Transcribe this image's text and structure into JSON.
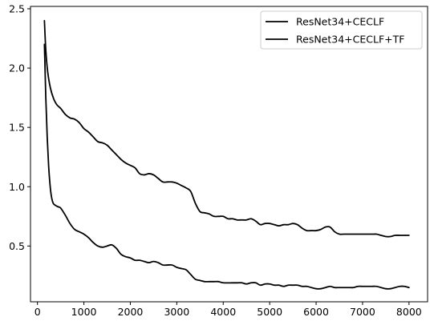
{
  "chart_data": {
    "type": "line",
    "title": "",
    "xlabel": "",
    "ylabel": "",
    "xlim": [
      -150,
      8400
    ],
    "ylim": [
      0.03,
      2.52
    ],
    "xticks": [
      0,
      1000,
      2000,
      3000,
      4000,
      5000,
      6000,
      7000,
      8000
    ],
    "yticks": [
      0.5,
      1.0,
      1.5,
      2.0,
      2.5
    ],
    "xtick_labels": [
      "0",
      "1000",
      "2000",
      "3000",
      "4000",
      "5000",
      "6000",
      "7000",
      "8000"
    ],
    "ytick_labels": [
      "0.5",
      "1.0",
      "1.5",
      "2.0",
      "2.5"
    ],
    "grid": false,
    "legend_position": "top-right",
    "series": [
      {
        "name": "ResNet34+CECLF",
        "color": "#000000",
        "points": [
          [
            150,
            2.4
          ],
          [
            180,
            2.15
          ],
          [
            220,
            1.97
          ],
          [
            280,
            1.83
          ],
          [
            350,
            1.74
          ],
          [
            420,
            1.69
          ],
          [
            500,
            1.66
          ],
          [
            600,
            1.61
          ],
          [
            700,
            1.58
          ],
          [
            800,
            1.57
          ],
          [
            900,
            1.54
          ],
          [
            1000,
            1.49
          ],
          [
            1100,
            1.46
          ],
          [
            1200,
            1.42
          ],
          [
            1300,
            1.38
          ],
          [
            1400,
            1.37
          ],
          [
            1500,
            1.35
          ],
          [
            1600,
            1.31
          ],
          [
            1700,
            1.27
          ],
          [
            1800,
            1.23
          ],
          [
            1900,
            1.2
          ],
          [
            2000,
            1.18
          ],
          [
            2100,
            1.16
          ],
          [
            2200,
            1.11
          ],
          [
            2300,
            1.1
          ],
          [
            2400,
            1.11
          ],
          [
            2500,
            1.1
          ],
          [
            2600,
            1.07
          ],
          [
            2700,
            1.04
          ],
          [
            2800,
            1.04
          ],
          [
            2900,
            1.04
          ],
          [
            3000,
            1.03
          ],
          [
            3100,
            1.01
          ],
          [
            3200,
            0.99
          ],
          [
            3300,
            0.96
          ],
          [
            3400,
            0.86
          ],
          [
            3500,
            0.79
          ],
          [
            3600,
            0.78
          ],
          [
            3700,
            0.77
          ],
          [
            3800,
            0.75
          ],
          [
            3900,
            0.75
          ],
          [
            4000,
            0.75
          ],
          [
            4100,
            0.73
          ],
          [
            4200,
            0.73
          ],
          [
            4300,
            0.72
          ],
          [
            4400,
            0.72
          ],
          [
            4500,
            0.72
          ],
          [
            4600,
            0.73
          ],
          [
            4700,
            0.71
          ],
          [
            4800,
            0.68
          ],
          [
            4900,
            0.69
          ],
          [
            5000,
            0.69
          ],
          [
            5100,
            0.68
          ],
          [
            5200,
            0.67
          ],
          [
            5300,
            0.68
          ],
          [
            5400,
            0.68
          ],
          [
            5500,
            0.69
          ],
          [
            5600,
            0.68
          ],
          [
            5700,
            0.65
          ],
          [
            5800,
            0.63
          ],
          [
            5900,
            0.63
          ],
          [
            6000,
            0.63
          ],
          [
            6100,
            0.64
          ],
          [
            6200,
            0.66
          ],
          [
            6300,
            0.66
          ],
          [
            6400,
            0.62
          ],
          [
            6500,
            0.6
          ],
          [
            6600,
            0.6
          ],
          [
            6800,
            0.6
          ],
          [
            7000,
            0.6
          ],
          [
            7200,
            0.6
          ],
          [
            7300,
            0.6
          ],
          [
            7400,
            0.59
          ],
          [
            7500,
            0.58
          ],
          [
            7600,
            0.58
          ],
          [
            7700,
            0.59
          ],
          [
            7800,
            0.59
          ],
          [
            7900,
            0.59
          ],
          [
            8000,
            0.59
          ]
        ]
      },
      {
        "name": "ResNet34+CECLF+TF",
        "color": "#000000",
        "points": [
          [
            150,
            2.2
          ],
          [
            180,
            1.75
          ],
          [
            210,
            1.42
          ],
          [
            240,
            1.18
          ],
          [
            270,
            1.02
          ],
          [
            300,
            0.92
          ],
          [
            340,
            0.86
          ],
          [
            400,
            0.84
          ],
          [
            450,
            0.83
          ],
          [
            500,
            0.82
          ],
          [
            600,
            0.76
          ],
          [
            700,
            0.69
          ],
          [
            800,
            0.64
          ],
          [
            900,
            0.62
          ],
          [
            1000,
            0.6
          ],
          [
            1100,
            0.57
          ],
          [
            1200,
            0.53
          ],
          [
            1300,
            0.5
          ],
          [
            1400,
            0.49
          ],
          [
            1500,
            0.5
          ],
          [
            1600,
            0.51
          ],
          [
            1700,
            0.48
          ],
          [
            1800,
            0.43
          ],
          [
            1900,
            0.41
          ],
          [
            2000,
            0.4
          ],
          [
            2100,
            0.38
          ],
          [
            2200,
            0.38
          ],
          [
            2300,
            0.37
          ],
          [
            2400,
            0.36
          ],
          [
            2500,
            0.37
          ],
          [
            2600,
            0.36
          ],
          [
            2700,
            0.34
          ],
          [
            2800,
            0.34
          ],
          [
            2900,
            0.34
          ],
          [
            3000,
            0.32
          ],
          [
            3100,
            0.31
          ],
          [
            3200,
            0.3
          ],
          [
            3300,
            0.26
          ],
          [
            3400,
            0.22
          ],
          [
            3500,
            0.21
          ],
          [
            3600,
            0.2
          ],
          [
            3700,
            0.2
          ],
          [
            3800,
            0.2
          ],
          [
            3900,
            0.2
          ],
          [
            4000,
            0.19
          ],
          [
            4200,
            0.19
          ],
          [
            4300,
            0.19
          ],
          [
            4400,
            0.19
          ],
          [
            4500,
            0.18
          ],
          [
            4600,
            0.19
          ],
          [
            4700,
            0.19
          ],
          [
            4800,
            0.17
          ],
          [
            4900,
            0.18
          ],
          [
            5000,
            0.18
          ],
          [
            5100,
            0.17
          ],
          [
            5200,
            0.17
          ],
          [
            5300,
            0.16
          ],
          [
            5400,
            0.17
          ],
          [
            5500,
            0.17
          ],
          [
            5600,
            0.17
          ],
          [
            5700,
            0.16
          ],
          [
            5800,
            0.16
          ],
          [
            5900,
            0.15
          ],
          [
            6000,
            0.14
          ],
          [
            6100,
            0.14
          ],
          [
            6200,
            0.15
          ],
          [
            6300,
            0.16
          ],
          [
            6400,
            0.15
          ],
          [
            6500,
            0.15
          ],
          [
            6600,
            0.15
          ],
          [
            6700,
            0.15
          ],
          [
            6800,
            0.15
          ],
          [
            6900,
            0.16
          ],
          [
            7000,
            0.16
          ],
          [
            7100,
            0.16
          ],
          [
            7200,
            0.16
          ],
          [
            7300,
            0.16
          ],
          [
            7400,
            0.15
          ],
          [
            7500,
            0.14
          ],
          [
            7600,
            0.14
          ],
          [
            7700,
            0.15
          ],
          [
            7800,
            0.16
          ],
          [
            7900,
            0.16
          ],
          [
            8000,
            0.15
          ]
        ]
      }
    ]
  }
}
